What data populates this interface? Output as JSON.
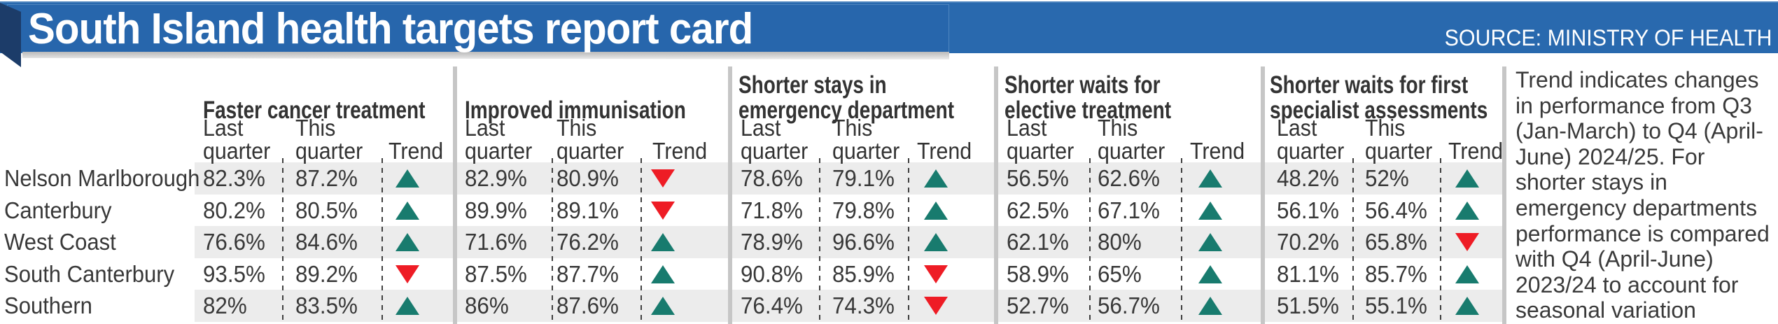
{
  "header": {
    "title": "South Island health targets report card",
    "source": "SOURCE: MINISTRY OF HEALTH"
  },
  "note": "Trend indicates changes in performance from Q3 (Jan-March) to Q4 (April-June) 2024/25. For shorter stays in emergency departments performance is compared with Q4 (April-June) 2023/24 to account for seasonal variation",
  "colors": {
    "banner_blue": "#2969ae",
    "bevel_navy": "#1c3c69",
    "trend_up_green": "#187b6e",
    "trend_down_red": "#ee1c25",
    "row_stripe_grey": "#ececec",
    "column_bar_grey": "#c6c6c6"
  },
  "chart_data": {
    "type": "table",
    "title": "South Island health targets report card",
    "source": "SOURCE: MINISTRY OF HEALTH",
    "groups": [
      {
        "title": "Faster cancer treatment",
        "title_display": "Faster cancer treatment"
      },
      {
        "title": "Improved immunisation",
        "title_display": "Improved immunisation"
      },
      {
        "title": "Shorter stays in emergency department",
        "title_display": "Shorter stays in\nemergency department"
      },
      {
        "title": "Shorter waits for elective treatment",
        "title_display": "Shorter waits for\nelective treatment"
      },
      {
        "title": "Shorter waits for first specialist assessments",
        "title_display": "Shorter waits for first\nspecialist assessments"
      }
    ],
    "columns": {
      "last": "Last quarter",
      "last_display": "Last\nquarter",
      "this": "This quarter",
      "this_display": "This\nquarter",
      "trend": "Trend"
    },
    "rows": [
      {
        "region": "Nelson Marlborough",
        "metrics": [
          {
            "last": "82.3%",
            "this": "87.2%",
            "trend": "up"
          },
          {
            "last": "82.9%",
            "this": "80.9%",
            "trend": "down"
          },
          {
            "last": "78.6%",
            "this": "79.1%",
            "trend": "up"
          },
          {
            "last": "56.5%",
            "this": "62.6%",
            "trend": "up"
          },
          {
            "last": "48.2%",
            "this": "52%",
            "trend": "up"
          }
        ]
      },
      {
        "region": "Canterbury",
        "metrics": [
          {
            "last": "80.2%",
            "this": "80.5%",
            "trend": "up"
          },
          {
            "last": "89.9%",
            "this": "89.1%",
            "trend": "down"
          },
          {
            "last": "71.8%",
            "this": "79.8%",
            "trend": "up"
          },
          {
            "last": "62.5%",
            "this": "67.1%",
            "trend": "up"
          },
          {
            "last": "56.1%",
            "this": "56.4%",
            "trend": "up"
          }
        ]
      },
      {
        "region": "West Coast",
        "metrics": [
          {
            "last": "76.6%",
            "this": "84.6%",
            "trend": "up"
          },
          {
            "last": "71.6%",
            "this": "76.2%",
            "trend": "up"
          },
          {
            "last": "78.9%",
            "this": "96.6%",
            "trend": "up"
          },
          {
            "last": "62.1%",
            "this": "80%",
            "trend": "up"
          },
          {
            "last": "70.2%",
            "this": "65.8%",
            "trend": "down"
          }
        ]
      },
      {
        "region": "South Canterbury",
        "metrics": [
          {
            "last": "93.5%",
            "this": "89.2%",
            "trend": "down"
          },
          {
            "last": "87.5%",
            "this": "87.7%",
            "trend": "up"
          },
          {
            "last": "90.8%",
            "this": "85.9%",
            "trend": "down"
          },
          {
            "last": "58.9%",
            "this": "65%",
            "trend": "up"
          },
          {
            "last": "81.1%",
            "this": "85.7%",
            "trend": "up"
          }
        ]
      },
      {
        "region": "Southern",
        "metrics": [
          {
            "last": "82%",
            "this": "83.5%",
            "trend": "up"
          },
          {
            "last": "86%",
            "this": "87.6%",
            "trend": "up"
          },
          {
            "last": "76.4%",
            "this": "74.3%",
            "trend": "down"
          },
          {
            "last": "52.7%",
            "this": "56.7%",
            "trend": "up"
          },
          {
            "last": "51.5%",
            "this": "55.1%",
            "trend": "up"
          }
        ]
      }
    ],
    "note": "Trend indicates changes in performance from Q3 (Jan-March) to Q4 (April-June) 2024/25. For shorter stays in emergency departments performance is compared with Q4 (April-June) 2023/24 to account for seasonal variation"
  }
}
